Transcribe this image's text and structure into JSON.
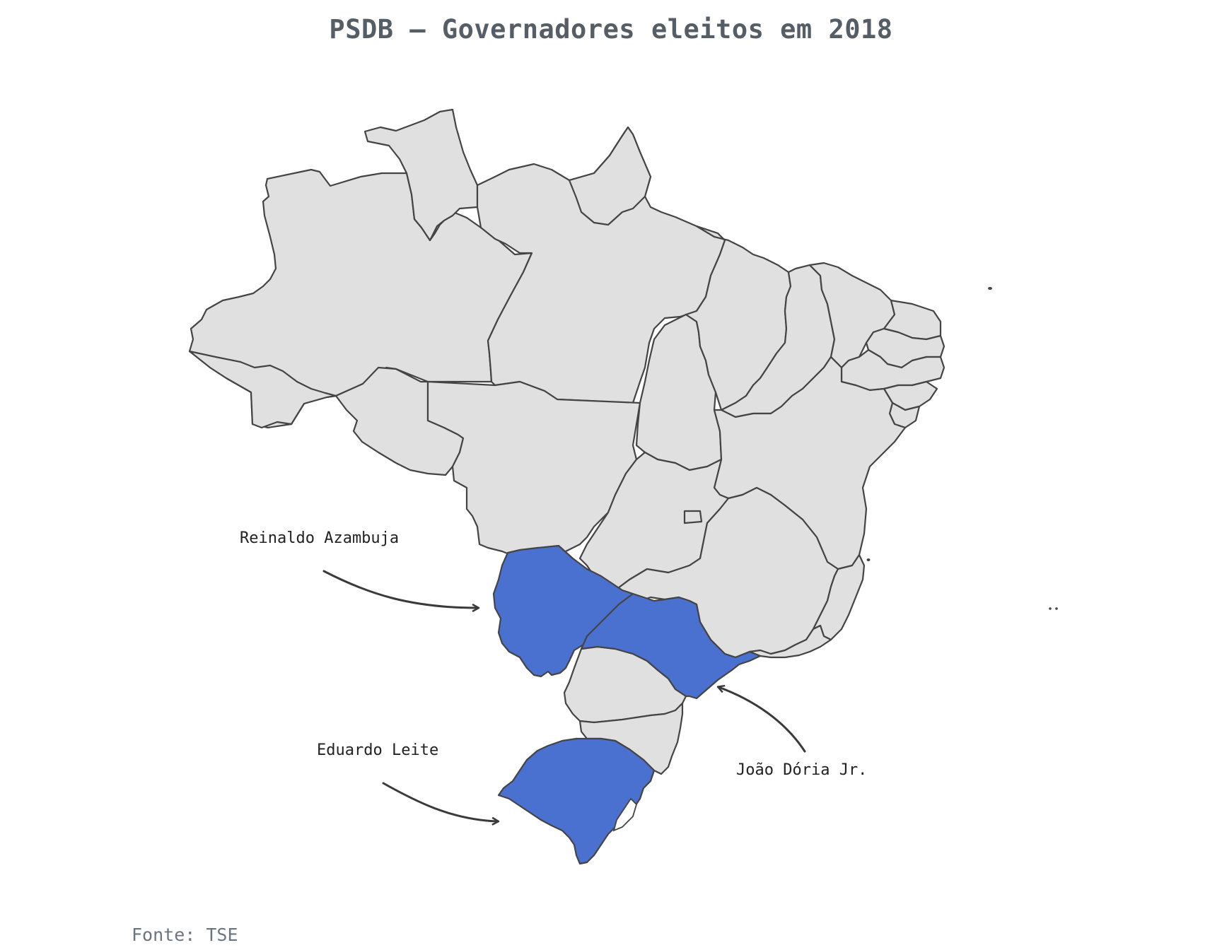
{
  "title": "PSDB – Governadores eleitos em 2018",
  "source": "Fonte: TSE",
  "colors": {
    "highlight": "#4a70d0",
    "base": "#e0e0e0",
    "border": "#444444",
    "arrow": "#3a3a3a"
  },
  "highlighted_states": [
    "MS",
    "SP",
    "RS"
  ],
  "annotations": [
    {
      "state": "MS",
      "governor": "Reinaldo Azambuja"
    },
    {
      "state": "RS",
      "governor": "Eduardo Leite"
    },
    {
      "state": "SP",
      "governor": "João Dória Jr."
    }
  ]
}
